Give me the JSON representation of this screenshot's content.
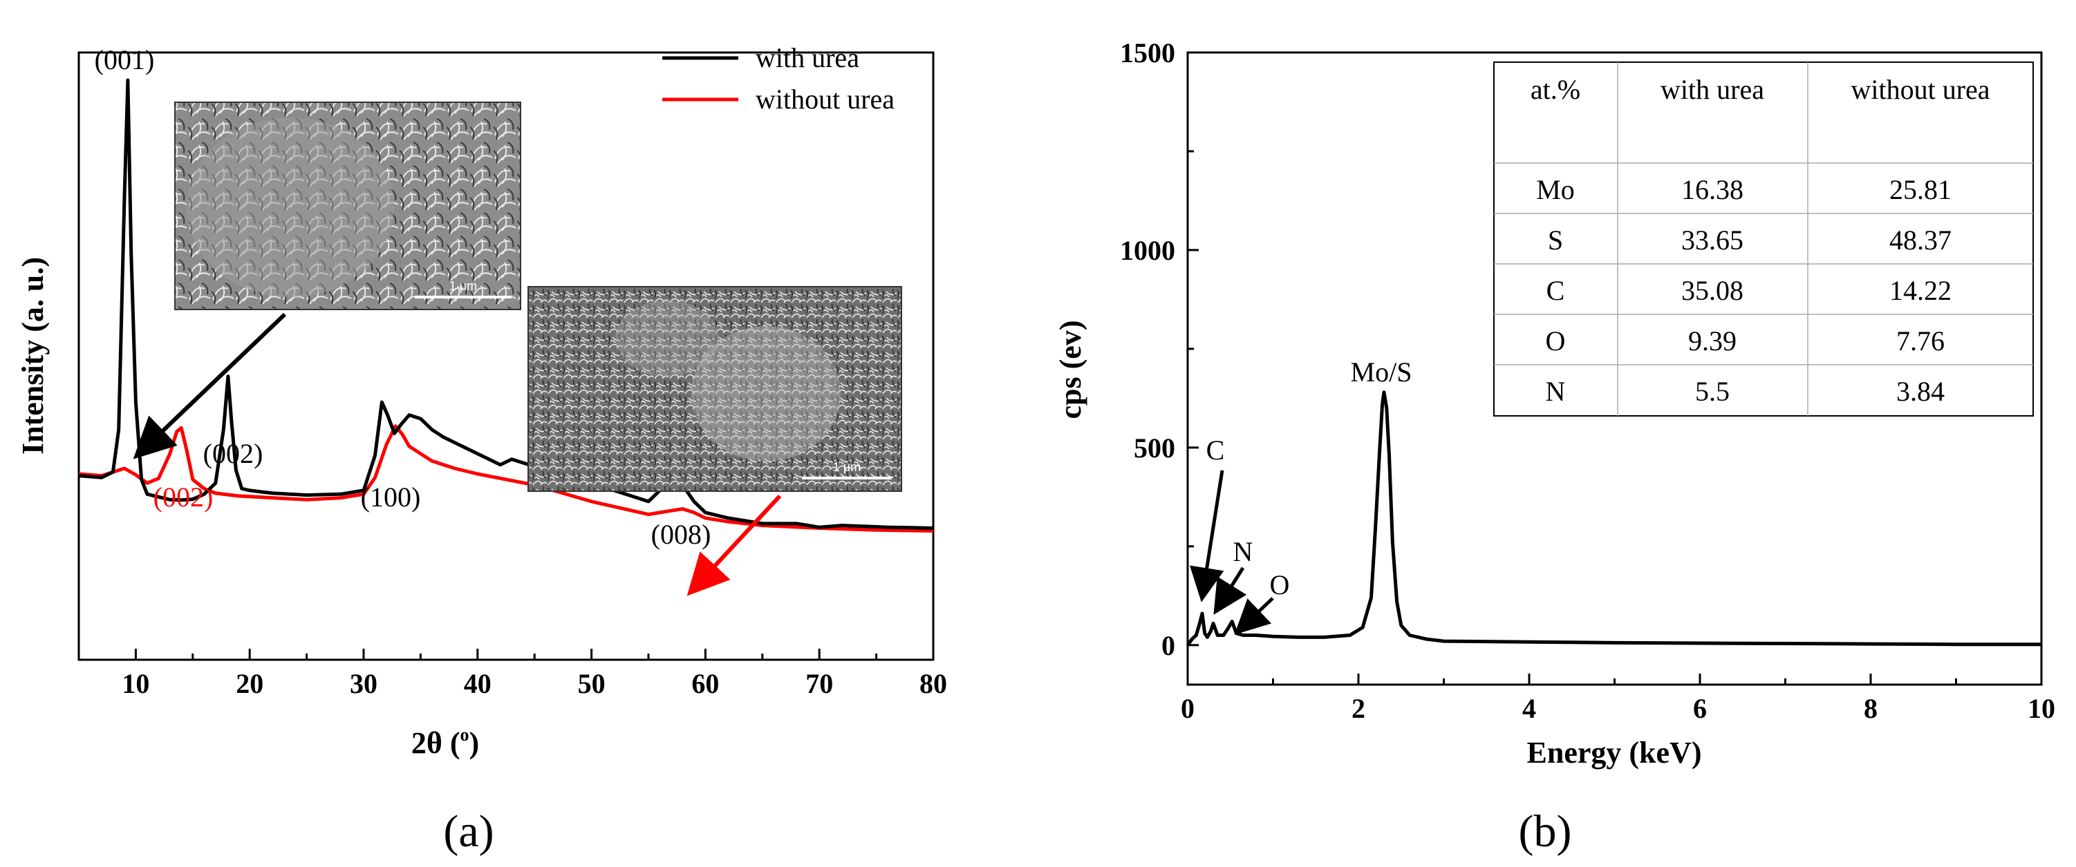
{
  "chart_data": [
    {
      "panel": "(a)",
      "type": "line",
      "xlabel": "2θ (°)",
      "xlabel_main": "2θ (",
      "xlabel_sup": "o",
      "xlabel_end": ")",
      "ylabel": "Intensity (a. u.)",
      "xlim": [
        5,
        80
      ],
      "xticks": [
        "10",
        "20",
        "30",
        "40",
        "50",
        "60",
        "70",
        "80"
      ],
      "grid": false,
      "legend_position": "top-right",
      "legend": [
        "with urea",
        "without urea"
      ],
      "series": [
        {
          "name": "with urea",
          "color": "#000000",
          "x": [
            5,
            7,
            8,
            8.5,
            9,
            9.3,
            9.6,
            10,
            10.5,
            11,
            12,
            13,
            14,
            15,
            16,
            17,
            17.7,
            18.1,
            18.4,
            18.8,
            19.3,
            20,
            22,
            25,
            28,
            30,
            31,
            31.6,
            32.1,
            32.7,
            33.3,
            34,
            35,
            36,
            37,
            38,
            40,
            42,
            43,
            45,
            47,
            50,
            53,
            55,
            56,
            57,
            58,
            59,
            60,
            62,
            65,
            68,
            70,
            72,
            74,
            76,
            78,
            80
          ],
          "y": [
            1000,
            990,
            1020,
            1250,
            2500,
            3150,
            2200,
            1400,
            980,
            900,
            885,
            870,
            868,
            872,
            900,
            960,
            1250,
            1540,
            1300,
            1030,
            930,
            920,
            905,
            895,
            900,
            920,
            1110,
            1400,
            1330,
            1230,
            1280,
            1330,
            1310,
            1250,
            1210,
            1180,
            1120,
            1060,
            1090,
            1050,
            1040,
            960,
            900,
            860,
            920,
            1000,
            950,
            860,
            800,
            770,
            740,
            740,
            720,
            730,
            725,
            720,
            718,
            715
          ]
        },
        {
          "name": "without urea",
          "color": "#ff0000",
          "x": [
            5,
            7,
            9,
            10,
            11,
            12,
            13,
            13.6,
            14,
            14.5,
            15,
            16,
            17,
            19,
            22,
            25,
            28,
            30,
            31,
            32,
            32.8,
            33.4,
            34,
            35,
            36,
            38,
            40,
            45,
            50,
            55,
            56,
            57,
            58,
            59,
            60,
            62,
            65,
            70,
            75,
            80
          ],
          "y": [
            1010,
            1000,
            1040,
            1005,
            960,
            985,
            1120,
            1240,
            1260,
            1130,
            980,
            930,
            905,
            890,
            880,
            870,
            880,
            900,
            990,
            1170,
            1270,
            1225,
            1160,
            1120,
            1080,
            1040,
            1010,
            950,
            860,
            790,
            800,
            810,
            820,
            800,
            770,
            750,
            730,
            715,
            705,
            700
          ]
        }
      ],
      "peak_labels": [
        {
          "text": "(001)",
          "x": 9.3,
          "color": "#000000"
        },
        {
          "text": "(002)",
          "x": 18.3,
          "color": "#000000"
        },
        {
          "text": "(002)",
          "x": 14.0,
          "color": "#ff0000"
        },
        {
          "text": "(100)",
          "x": 32.0,
          "color": "#000000"
        },
        {
          "text": "(008)",
          "x": 57.0,
          "color": "#000000"
        }
      ],
      "inset_scale_bar_label": "1 μm",
      "colors": {
        "with_urea": "#000000",
        "without_urea": "#ff0000"
      }
    },
    {
      "panel": "(b)",
      "type": "line",
      "xlabel": "Energy (keV)",
      "ylabel": "cps (ev)",
      "xlim": [
        0,
        10
      ],
      "ylim": [
        -100,
        1500
      ],
      "xticks": [
        "0",
        "2",
        "4",
        "6",
        "8",
        "10"
      ],
      "yticks": [
        "0",
        "500",
        "1000",
        "1500"
      ],
      "grid": false,
      "series": [
        {
          "name": "",
          "color": "#000000",
          "x": [
            0,
            0.05,
            0.1,
            0.14,
            0.17,
            0.2,
            0.23,
            0.27,
            0.3,
            0.35,
            0.42,
            0.48,
            0.52,
            0.57,
            0.65,
            0.8,
            1.0,
            1.3,
            1.6,
            1.9,
            2.05,
            2.15,
            2.2,
            2.25,
            2.28,
            2.3,
            2.33,
            2.36,
            2.4,
            2.45,
            2.5,
            2.6,
            2.8,
            3.0,
            4.0,
            5.0,
            6.0,
            7.0,
            8.0,
            9.0,
            10.0
          ],
          "y": [
            0,
            15,
            25,
            55,
            80,
            30,
            20,
            35,
            55,
            25,
            25,
            45,
            60,
            30,
            25,
            25,
            22,
            20,
            20,
            25,
            45,
            120,
            300,
            500,
            610,
            640,
            600,
            480,
            260,
            110,
            50,
            25,
            15,
            10,
            8,
            6,
            5,
            4,
            3,
            2,
            2
          ]
        }
      ],
      "peak_labels": [
        {
          "text": "C",
          "x": 0.27
        },
        {
          "text": "N",
          "x": 0.39
        },
        {
          "text": "O",
          "x": 0.53
        },
        {
          "text": "Mo/S",
          "x": 2.3
        }
      ],
      "table": {
        "headers": [
          "at.%",
          "with urea",
          "without urea"
        ],
        "rows": [
          [
            "Mo",
            "16.38",
            "25.81"
          ],
          [
            "S",
            "33.65",
            "48.37"
          ],
          [
            "C",
            "35.08",
            "14.22"
          ],
          [
            "O",
            "9.39",
            "7.76"
          ],
          [
            "N",
            "5.5",
            "3.84"
          ]
        ]
      }
    }
  ]
}
